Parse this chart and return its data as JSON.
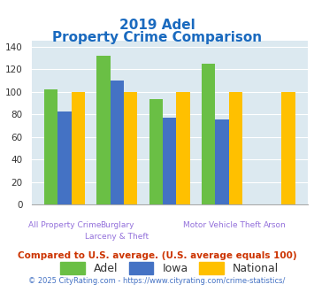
{
  "title_line1": "2019 Adel",
  "title_line2": "Property Crime Comparison",
  "adel": [
    102,
    132,
    93,
    125,
    0
  ],
  "iowa": [
    82,
    110,
    77,
    75,
    0
  ],
  "national": [
    100,
    100,
    100,
    100,
    100
  ],
  "color_adel": "#6abf45",
  "color_iowa": "#4472c4",
  "color_national": "#ffc000",
  "ylim": [
    0,
    145
  ],
  "yticks": [
    0,
    20,
    40,
    60,
    80,
    100,
    120,
    140
  ],
  "bg_color": "#dce9f0",
  "title_color": "#1a6abf",
  "axis_label_color": "#9370db",
  "footer_text": "Compared to U.S. average. (U.S. average equals 100)",
  "copyright_text": "© 2025 CityRating.com - https://www.cityrating.com/crime-statistics/",
  "footer_color": "#cc3300",
  "copyright_color": "#4472c4",
  "legend_labels": [
    "Adel",
    "Iowa",
    "National"
  ],
  "top_labels": [
    "All Property Crime",
    "Burglary",
    "",
    "Motor Vehicle Theft",
    "Arson"
  ],
  "bot_labels": [
    "",
    "Larceny & Theft",
    "",
    "",
    ""
  ]
}
